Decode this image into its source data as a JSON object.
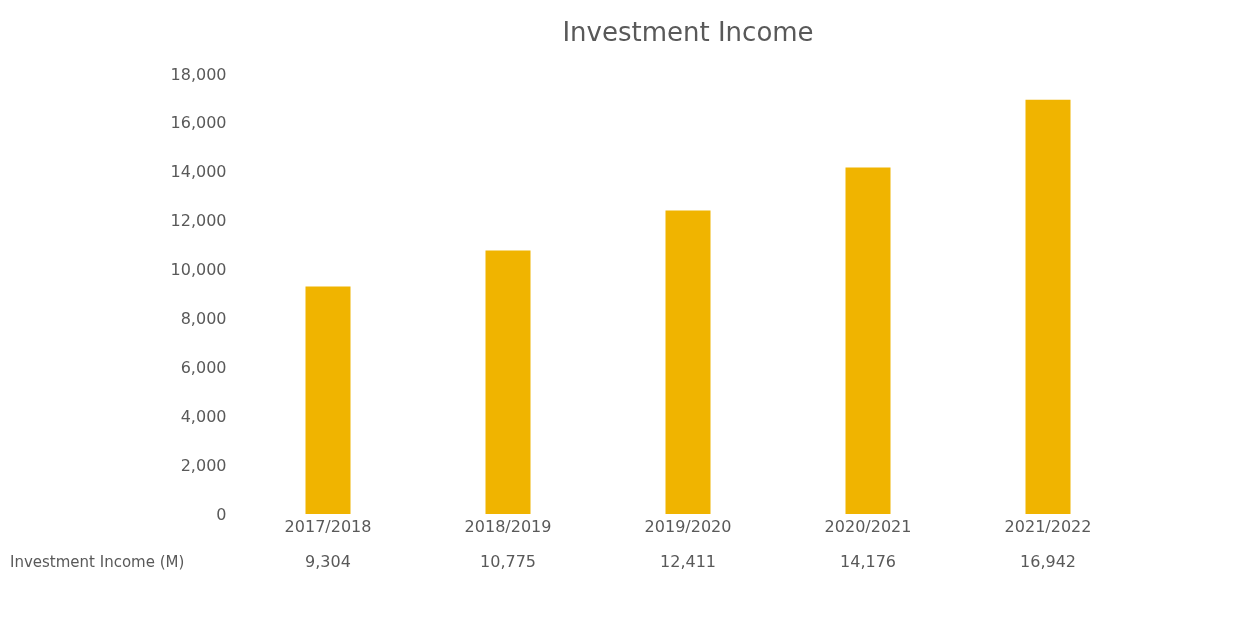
{
  "chart_data": {
    "type": "bar",
    "title": "Investment Income",
    "categories": [
      "2017/2018",
      "2018/2019",
      "2019/2020",
      "2020/2021",
      "2021/2022"
    ],
    "series": [
      {
        "name": "Investment Income (M)",
        "color": "#f0b400",
        "values": [
          9304,
          10775,
          12411,
          14176,
          16942
        ],
        "value_labels": [
          "9,304",
          "10,775",
          "12,411",
          "14,176",
          "16,942"
        ]
      }
    ],
    "ylim": [
      0,
      18000
    ],
    "yticks": [
      0,
      {
        "value": 2000,
        "label": "2,000"
      },
      {
        "value": 4000,
        "label": "4,000"
      },
      {
        "value": 6000,
        "label": "6,000"
      },
      {
        "value": 8000,
        "label": "8,000"
      },
      {
        "value": 10000,
        "label": "10,000"
      },
      {
        "value": 12000,
        "label": "12,000"
      },
      {
        "value": 14000,
        "label": "14,000"
      },
      {
        "value": 16000,
        "label": "16,000"
      },
      {
        "value": 18000,
        "label": "18,000"
      }
    ],
    "grid": false
  }
}
